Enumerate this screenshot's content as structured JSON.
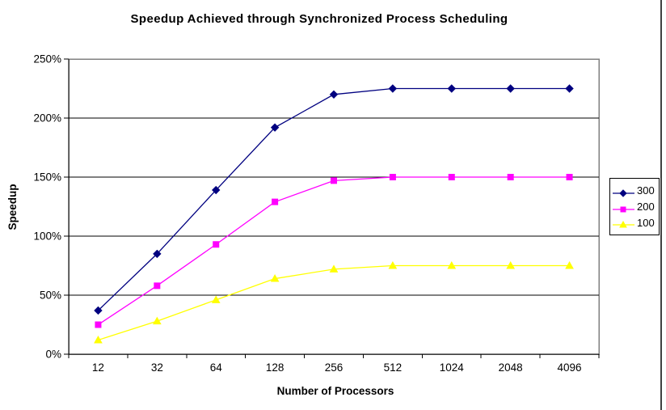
{
  "chart_data": {
    "type": "line",
    "title": "Speedup Achieved through Synchronized Process Scheduling",
    "xlabel": "Number of Processors",
    "ylabel": "Speedup",
    "categories": [
      "12",
      "32",
      "64",
      "128",
      "256",
      "512",
      "1024",
      "2048",
      "4096"
    ],
    "series": [
      {
        "name": "300",
        "color": "#000080",
        "marker": "diamond",
        "values": [
          37,
          85,
          139,
          192,
          220,
          225,
          225,
          225,
          225
        ]
      },
      {
        "name": "200",
        "color": "#FF00FF",
        "marker": "square",
        "values": [
          25,
          58,
          93,
          129,
          147,
          150,
          150,
          150,
          150
        ]
      },
      {
        "name": "100",
        "color": "#FFFF00",
        "marker": "triangle",
        "values": [
          12,
          28,
          46,
          64,
          72,
          75,
          75,
          75,
          75
        ]
      }
    ],
    "y_ticks": [
      "0%",
      "50%",
      "100%",
      "150%",
      "200%",
      "250%"
    ],
    "ylim": [
      0,
      250
    ],
    "y_tick_step": 50,
    "grid": true,
    "legend_position": "right",
    "colors": {
      "gridline": "#000000",
      "axis": "#000000",
      "plot_border": "#808080",
      "background": "#FFFFFF",
      "text": "#000000"
    }
  }
}
